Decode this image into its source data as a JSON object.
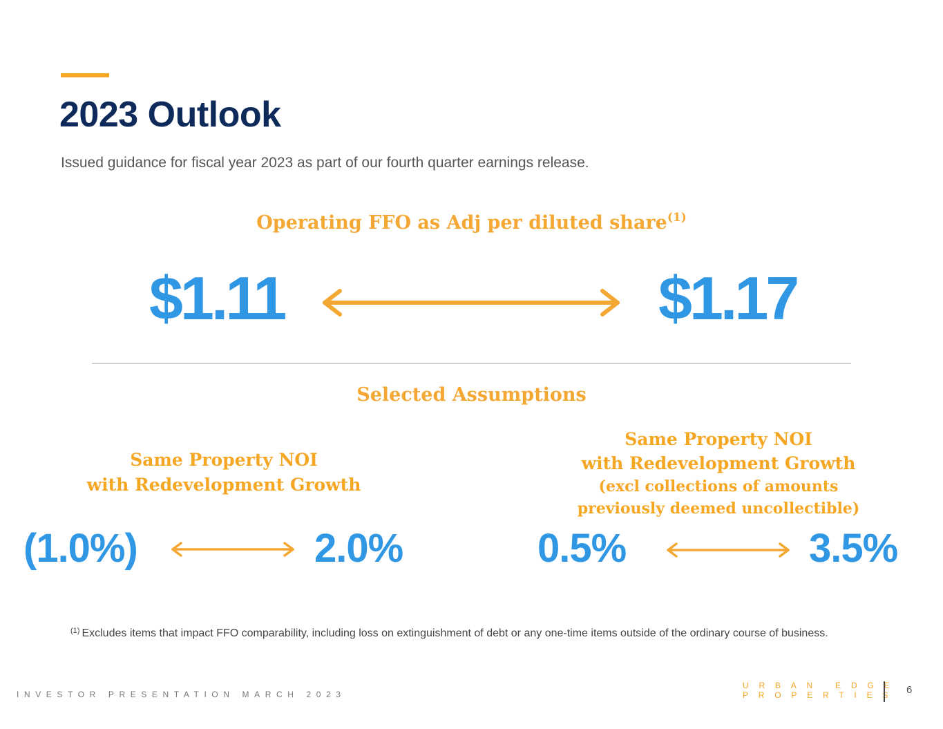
{
  "page": {
    "title": "2023 Outlook",
    "subtitle": "Issued guidance for fiscal year 2023 as part of our fourth quarter earnings release."
  },
  "ffo": {
    "heading": "Operating FFO as Adj per diluted share",
    "footnote_ref": "(1)",
    "low": "$1.11",
    "high": "$1.17"
  },
  "assumptions": {
    "heading": "Selected Assumptions",
    "left": {
      "label_line1": "Same Property NOI",
      "label_line2": "with Redevelopment Growth",
      "low": "(1.0%)",
      "high": "2.0%"
    },
    "right": {
      "label_line1": "Same Property NOI",
      "label_line2": "with Redevelopment Growth",
      "label_line3": "(excl collections of amounts",
      "label_line4": "previously deemed uncollectible)",
      "low": "0.5%",
      "high": "3.5%"
    }
  },
  "footnote": {
    "marker": "(1)",
    "text": "Excludes items that impact FFO comparability, including loss on extinguishment of debt or any one-time items outside of the ordinary course of business."
  },
  "footer": {
    "left_text": "INVESTOR PRESENTATION MARCH 2023",
    "logo_line1": "URBAN EDGE",
    "logo_line2": "PROPERTIES",
    "page_number": "6"
  },
  "colors": {
    "navy": "#0d2a5a",
    "blue": "#2f97e4",
    "orange": "#f5a623",
    "gray_text": "#555555"
  }
}
